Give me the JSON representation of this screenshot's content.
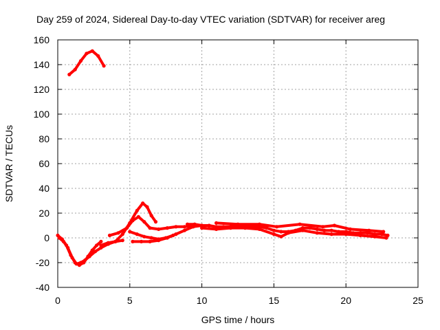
{
  "chart_data": {
    "type": "line",
    "title": "Day 259 of 2024, Sidereal Day-to-day VTEC variation (SDTVAR) for receiver areg",
    "xlabel": "GPS time / hours",
    "ylabel": "SDTVAR / TECUs",
    "xlim": [
      0,
      25
    ],
    "ylim": [
      -40,
      160
    ],
    "xticks": [
      0,
      5,
      10,
      15,
      20,
      25
    ],
    "yticks": [
      -40,
      -20,
      0,
      20,
      40,
      60,
      80,
      100,
      120,
      140,
      160
    ],
    "grid": true,
    "color": "#ff0000",
    "series": [
      {
        "name": "trace-high-arc",
        "x": [
          0.8,
          1.2,
          1.6,
          2.0,
          2.4,
          2.8,
          3.2
        ],
        "y": [
          132,
          136,
          143,
          149,
          151,
          147,
          139
        ]
      },
      {
        "name": "trace-dip-a",
        "x": [
          0.0,
          0.3,
          0.6,
          0.9,
          1.2,
          1.5,
          1.8,
          2.1,
          2.4,
          2.7,
          3.0
        ],
        "y": [
          2,
          -1,
          -6,
          -14,
          -20,
          -22,
          -20,
          -15,
          -10,
          -6,
          -3
        ]
      },
      {
        "name": "trace-dip-b",
        "x": [
          0.1,
          0.4,
          0.7,
          1.0,
          1.3,
          1.6,
          1.9,
          2.2,
          2.6,
          3.0,
          3.5,
          4.0,
          4.5
        ],
        "y": [
          0,
          -3,
          -8,
          -16,
          -21,
          -20,
          -18,
          -15,
          -11,
          -8,
          -5,
          -3,
          -2
        ]
      },
      {
        "name": "trace-rise-to-peak",
        "x": [
          3.0,
          3.5,
          4.0,
          4.5,
          5.0,
          5.5,
          5.9,
          6.2,
          6.5,
          6.8
        ],
        "y": [
          -6,
          -4,
          -3,
          3,
          12,
          22,
          28,
          25,
          18,
          13
        ]
      },
      {
        "name": "trace-mid-bump",
        "x": [
          3.6,
          4.2,
          4.8,
          5.2,
          5.6,
          6.0,
          6.4,
          7.0,
          7.6,
          8.2,
          8.8,
          9.4,
          10.0
        ],
        "y": [
          2,
          4,
          8,
          14,
          17,
          13,
          8,
          7,
          8,
          9,
          9,
          10,
          10
        ]
      },
      {
        "name": "trace-low-band",
        "x": [
          5.2,
          5.8,
          6.4,
          7.0,
          7.6,
          8.2,
          8.8,
          9.4,
          10.0
        ],
        "y": [
          -3,
          -3,
          -3,
          -2,
          0,
          3,
          6,
          9,
          10
        ]
      },
      {
        "name": "trace-back-ramp",
        "x": [
          5.0,
          5.5,
          6.0,
          6.5,
          7.0,
          7.5,
          8.0
        ],
        "y": [
          5,
          3,
          1,
          0,
          -1,
          0,
          2
        ]
      },
      {
        "name": "trace-plateau",
        "x": [
          9.0,
          9.5,
          10.0,
          10.5,
          11.0,
          11.5,
          12.0,
          12.5,
          13.0,
          13.5,
          14.0,
          14.5,
          15.0,
          15.5,
          16.0,
          16.5,
          17.0,
          17.5,
          18.0,
          18.5,
          19.0,
          19.5,
          20.0,
          20.5,
          21.0,
          21.5,
          22.0,
          22.5,
          22.9
        ],
        "y": [
          11,
          11,
          10,
          10,
          9,
          9,
          9,
          10,
          10,
          9,
          9,
          8,
          6,
          5,
          5,
          6,
          8,
          8,
          7,
          6,
          6,
          5,
          5,
          4,
          4,
          4,
          3,
          3,
          2
        ]
      },
      {
        "name": "trace-plateau-lower",
        "x": [
          10.0,
          11.0,
          12.0,
          13.0,
          14.0,
          15.0,
          15.5,
          16.0,
          17.0,
          18.0,
          19.0,
          20.0,
          21.0,
          22.0,
          22.8
        ],
        "y": [
          8,
          7,
          8,
          8,
          7,
          3,
          1,
          4,
          6,
          4,
          3,
          3,
          2,
          1,
          0
        ]
      },
      {
        "name": "trace-plateau-upper",
        "x": [
          11.0,
          12.5,
          14.0,
          15.2,
          16.8,
          18.4,
          19.2,
          20.3,
          21.6,
          22.6
        ],
        "y": [
          12,
          11,
          11,
          9,
          11,
          9,
          10,
          7,
          6,
          5
        ]
      }
    ]
  }
}
